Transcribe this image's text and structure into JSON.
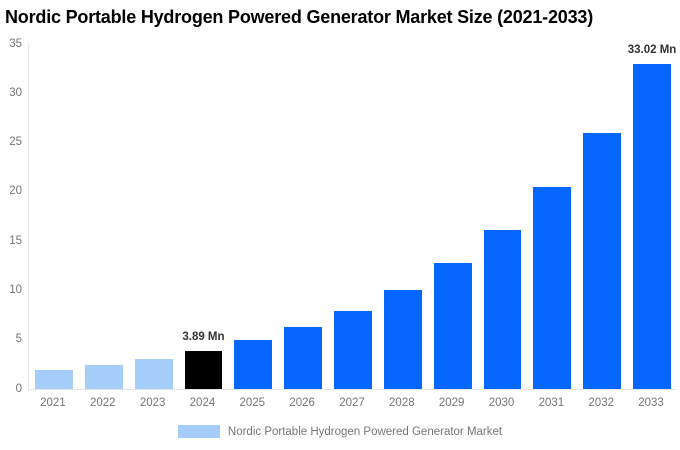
{
  "chart_data": {
    "type": "bar",
    "title": "Nordic Portable Hydrogen Powered Generator Market Size (2021-2033)",
    "unit": "Mn",
    "categories": [
      "2021",
      "2022",
      "2023",
      "2024",
      "2025",
      "2026",
      "2027",
      "2028",
      "2029",
      "2030",
      "2031",
      "2032",
      "2033"
    ],
    "series": [
      {
        "name": "Nordic Portable Hydrogen Powered Generator Market",
        "values": [
          1.91,
          2.42,
          3.07,
          3.89,
          4.93,
          6.26,
          7.93,
          10.06,
          12.76,
          16.18,
          20.52,
          26.02,
          33.02
        ]
      }
    ],
    "xlabel": "",
    "ylabel": "",
    "ylim": [
      0,
      35
    ],
    "yticks": [
      0,
      5,
      10,
      15,
      20,
      25,
      30,
      35
    ],
    "grid": false,
    "legend_position": "bottom",
    "data_labels": [
      "",
      "",
      "",
      "3.89 Mn",
      "",
      "",
      "",
      "",
      "",
      "",
      "",
      "",
      "33.02 Mn"
    ],
    "bar_colors": [
      "#a5cdfa",
      "#a5cdfa",
      "#a5cdfa",
      "#000000",
      "#0567fd",
      "#0567fd",
      "#0567fd",
      "#0567fd",
      "#0567fd",
      "#0567fd",
      "#0567fd",
      "#0567fd",
      "#0567fd"
    ],
    "colors": {
      "historical_bar": "#a5cdfa",
      "base_year_bar": "#000000",
      "forecast_bar": "#0567fd",
      "title_text": "#000000",
      "axis_text": "#757575",
      "data_label_text": "#333333",
      "axis_line": "#e6e6e6",
      "legend_swatch": "#a5cdfa",
      "legend_text": "#757575"
    }
  }
}
